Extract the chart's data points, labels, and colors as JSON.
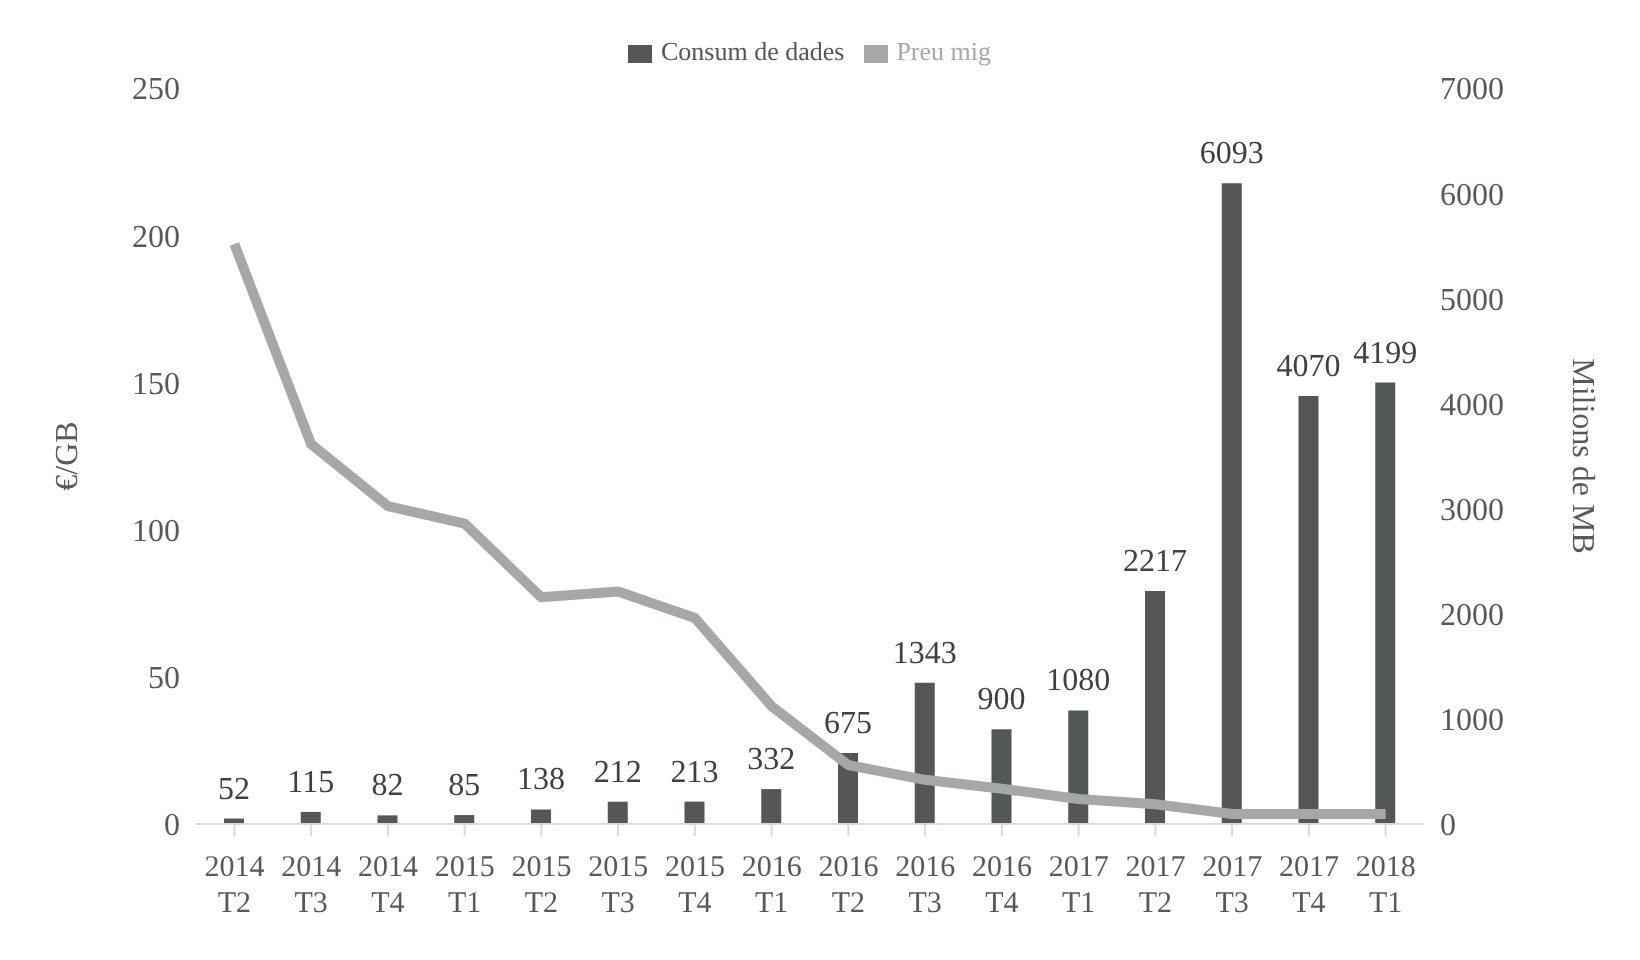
{
  "chart_data": {
    "type": "bar",
    "categories": [
      "2014 T2",
      "2014 T3",
      "2014 T4",
      "2015 T1",
      "2015 T2",
      "2015 T3",
      "2015 T4",
      "2016 T1",
      "2016 T2",
      "2016 T3",
      "2016 T4",
      "2017 T1",
      "2017 T2",
      "2017 T3",
      "2017 T4",
      "2018 T1"
    ],
    "series": [
      {
        "name": "Consum de dades",
        "axis": "y2",
        "color": "#545758",
        "values": [
          52,
          115,
          82,
          85,
          138,
          212,
          213,
          332,
          675,
          1343,
          900,
          1080,
          2217,
          6093,
          4070,
          4199
        ],
        "value_labels": [
          "52",
          "115",
          "82",
          "85",
          "138",
          "212",
          "213",
          "332",
          "675",
          "1343",
          "900",
          "1080",
          "2217",
          "6093",
          "4070",
          "4199"
        ]
      },
      {
        "name": "Preu mig",
        "type": "line",
        "color": "#a5a8a7",
        "values": [
          197,
          129,
          108,
          102,
          77,
          79,
          70,
          40,
          20,
          15,
          12,
          8.5,
          6.7,
          3.4,
          3.4,
          3.4
        ]
      }
    ],
    "ylabel": "€/GB",
    "y2label": "Milions de MB",
    "ylim": [
      0,
      250
    ],
    "yticks": [
      0,
      50,
      100,
      150,
      200,
      250
    ],
    "y2lim": [
      0,
      7000
    ],
    "y2ticks": [
      0,
      1000,
      2000,
      3000,
      4000,
      5000,
      6000,
      7000
    ],
    "legend": "top",
    "grid": false,
    "marker": "none",
    "line_style": "solid"
  }
}
